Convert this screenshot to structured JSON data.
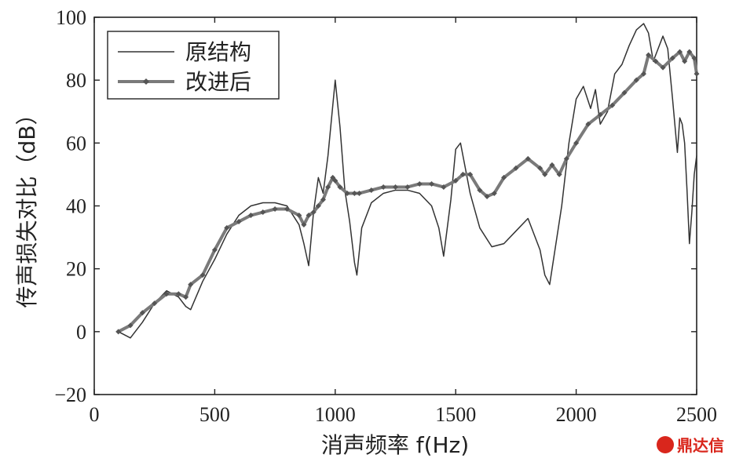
{
  "chart_data": {
    "type": "line",
    "xlabel": "消声频率 f(Hz)",
    "ylabel": "传声损失对比（dB）",
    "xlim": [
      0,
      2500
    ],
    "ylim": [
      -20,
      100
    ],
    "xticks": [
      "0",
      "500",
      "1000",
      "1500",
      "2000",
      "2500"
    ],
    "yticks": [
      "−20",
      "0",
      "20",
      "40",
      "60",
      "80",
      "100"
    ],
    "grid": false,
    "legend": "top-left",
    "series": [
      {
        "name": "原结构",
        "color": "#333333",
        "marker": "none",
        "x": [
          100,
          150,
          200,
          250,
          300,
          350,
          380,
          400,
          450,
          500,
          550,
          600,
          650,
          700,
          750,
          800,
          850,
          870,
          890,
          910,
          930,
          950,
          970,
          990,
          1000,
          1020,
          1040,
          1060,
          1080,
          1090,
          1110,
          1150,
          1200,
          1250,
          1300,
          1350,
          1400,
          1430,
          1450,
          1480,
          1500,
          1520,
          1540,
          1560,
          1600,
          1650,
          1700,
          1750,
          1800,
          1850,
          1870,
          1890,
          1910,
          1940,
          1970,
          2000,
          2030,
          2060,
          2080,
          2100,
          2130,
          2160,
          2190,
          2220,
          2250,
          2280,
          2300,
          2320,
          2340,
          2360,
          2380,
          2400,
          2420,
          2430,
          2440,
          2450,
          2460,
          2470,
          2480,
          2490,
          2500
        ],
        "y": [
          0,
          -2,
          3,
          9,
          13,
          11,
          8,
          7,
          16,
          23,
          31,
          37,
          40,
          41,
          41,
          40,
          34,
          28,
          21,
          38,
          49,
          44,
          56,
          72,
          80,
          65,
          45,
          35,
          22,
          18,
          33,
          41,
          44,
          45,
          45,
          44,
          40,
          33,
          24,
          42,
          58,
          60,
          52,
          44,
          33,
          27,
          28,
          32,
          36,
          26,
          18,
          15,
          25,
          40,
          60,
          74,
          78,
          71,
          77,
          66,
          70,
          82,
          85,
          91,
          96,
          98,
          95,
          86,
          90,
          94,
          90,
          74,
          57,
          68,
          66,
          60,
          45,
          28,
          38,
          50,
          56
        ]
      },
      {
        "name": "改进后",
        "color": "#7a7a7a",
        "marker": "diamond",
        "x": [
          100,
          150,
          200,
          250,
          300,
          350,
          380,
          400,
          450,
          500,
          550,
          600,
          650,
          700,
          750,
          800,
          850,
          870,
          890,
          910,
          930,
          950,
          970,
          990,
          1000,
          1020,
          1050,
          1080,
          1100,
          1150,
          1200,
          1250,
          1300,
          1350,
          1400,
          1450,
          1500,
          1530,
          1560,
          1600,
          1630,
          1660,
          1700,
          1750,
          1800,
          1850,
          1870,
          1900,
          1930,
          1960,
          2000,
          2050,
          2100,
          2150,
          2200,
          2250,
          2280,
          2300,
          2330,
          2360,
          2400,
          2430,
          2450,
          2470,
          2490,
          2500
        ],
        "y": [
          0,
          2,
          6,
          9,
          12,
          12,
          11,
          15,
          18,
          26,
          33,
          35,
          37,
          38,
          39,
          39,
          37,
          34,
          37,
          38,
          40,
          42,
          46,
          49,
          48,
          46,
          44,
          44,
          44,
          45,
          46,
          46,
          46,
          47,
          47,
          46,
          48,
          50,
          50,
          45,
          43,
          44,
          49,
          52,
          55,
          52,
          50,
          53,
          50,
          55,
          60,
          66,
          69,
          72,
          76,
          80,
          82,
          88,
          86,
          84,
          87,
          89,
          86,
          89,
          87,
          82
        ]
      }
    ]
  },
  "watermark": {
    "text": "鼎达信"
  }
}
